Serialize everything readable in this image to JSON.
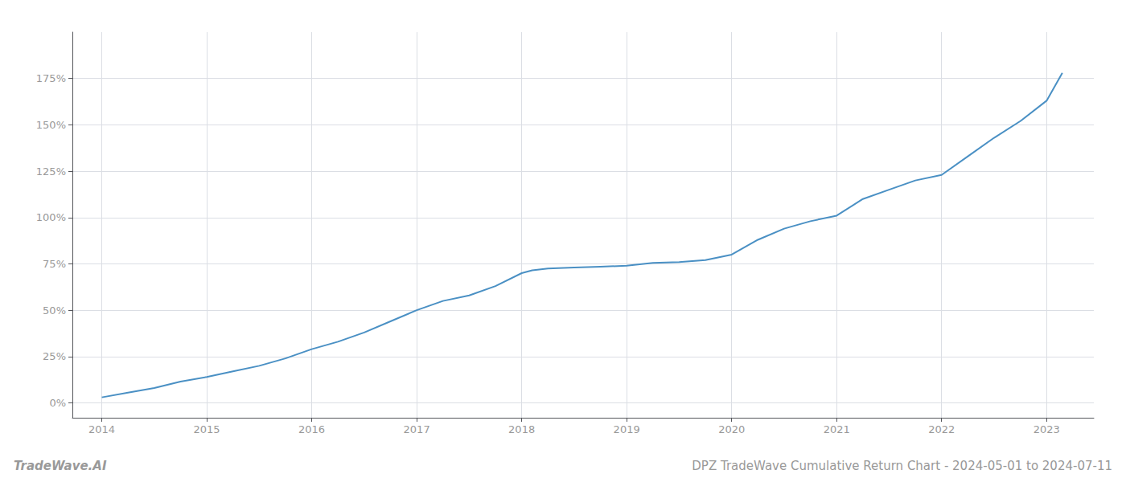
{
  "chart_data": {
    "type": "line",
    "title": "DPZ TradeWave Cumulative Return Chart - 2024-05-01 to 2024-07-11",
    "annotations": [
      "TradeWave.AI"
    ],
    "color": "#4a90c4",
    "x": [
      2014.0,
      2014.25,
      2014.5,
      2014.75,
      2015.0,
      2015.25,
      2015.5,
      2015.75,
      2016.0,
      2016.25,
      2016.5,
      2016.75,
      2017.0,
      2017.25,
      2017.5,
      2017.75,
      2018.0,
      2018.1,
      2018.25,
      2018.5,
      2018.75,
      2019.0,
      2019.25,
      2019.5,
      2019.75,
      2020.0,
      2020.25,
      2020.5,
      2020.75,
      2021.0,
      2021.25,
      2021.5,
      2021.75,
      2022.0,
      2022.25,
      2022.5,
      2022.75,
      2023.0,
      2023.15
    ],
    "values": [
      3.0,
      5.5,
      8.0,
      11.5,
      14.0,
      17.0,
      20.0,
      24.0,
      29.0,
      33.0,
      38.0,
      44.0,
      50.0,
      55.0,
      58.0,
      63.0,
      70.0,
      71.5,
      72.5,
      73.0,
      73.5,
      74.0,
      75.5,
      76.0,
      77.0,
      80.0,
      88.0,
      94.0,
      98.0,
      101.0,
      110.0,
      115.0,
      120.0,
      123.0,
      133.0,
      143.0,
      152.0,
      163.0,
      178.0
    ],
    "xlim": [
      2013.72,
      2023.45
    ],
    "xticks": [
      2014,
      2015,
      2016,
      2017,
      2018,
      2019,
      2020,
      2021,
      2022,
      2023
    ],
    "ylim": [
      -8,
      200
    ],
    "yticks": [
      {
        "value": 0,
        "label": "0%"
      },
      {
        "value": 25,
        "label": "25%"
      },
      {
        "value": 50,
        "label": "50%"
      },
      {
        "value": 75,
        "label": "75%"
      },
      {
        "value": 100,
        "label": "100%"
      },
      {
        "value": 125,
        "label": "125%"
      },
      {
        "value": 150,
        "label": "150%"
      },
      {
        "value": 175,
        "label": "175%"
      }
    ],
    "grid": true
  }
}
